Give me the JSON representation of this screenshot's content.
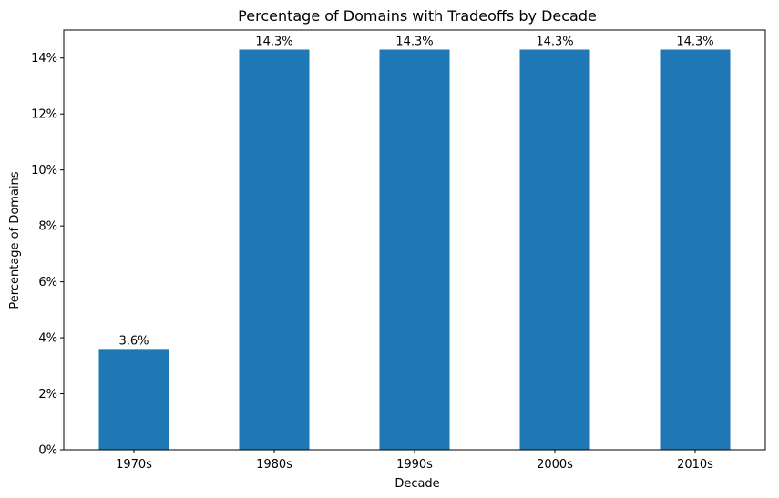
{
  "chart_data": {
    "type": "bar",
    "title": "Percentage of Domains with Tradeoffs by Decade",
    "xlabel": "Decade",
    "ylabel": "Percentage of Domains",
    "categories": [
      "1970s",
      "1980s",
      "1990s",
      "2000s",
      "2010s"
    ],
    "values": [
      3.6,
      14.3,
      14.3,
      14.3,
      14.3
    ],
    "value_labels": [
      "3.6%",
      "14.3%",
      "14.3%",
      "14.3%",
      "14.3%"
    ],
    "ylim": [
      0,
      15
    ],
    "yticks": [
      0,
      2,
      4,
      6,
      8,
      10,
      12,
      14
    ],
    "ytick_labels": [
      "0%",
      "2%",
      "4%",
      "6%",
      "8%",
      "10%",
      "12%",
      "14%"
    ],
    "bar_color": "#1f77b4",
    "grid": false,
    "legend": "none"
  }
}
